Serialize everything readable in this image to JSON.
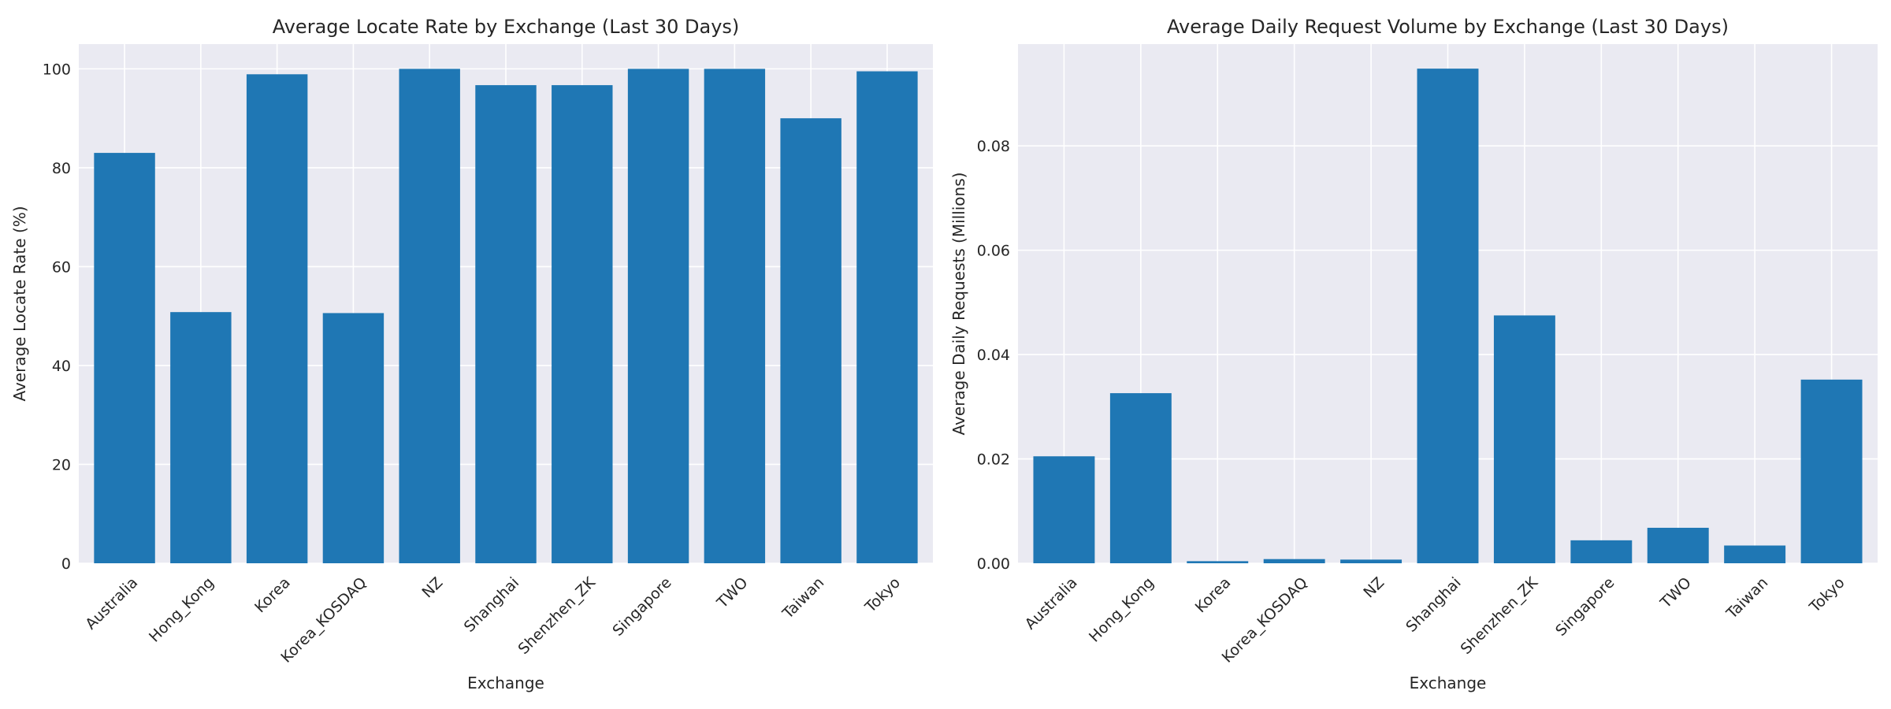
{
  "chart_data": [
    {
      "type": "bar",
      "title": "Average Locate Rate by Exchange (Last 30 Days)",
      "xlabel": "Exchange",
      "ylabel": "Average Locate Rate (%)",
      "categories": [
        "Australia",
        "Hong_Kong",
        "Korea",
        "Korea_KOSDAQ",
        "NZ",
        "Shanghai",
        "Shenzhen_ZK",
        "Singapore",
        "TWO",
        "Taiwan",
        "Tokyo"
      ],
      "values": [
        83.0,
        50.8,
        98.9,
        50.6,
        100.0,
        96.7,
        96.7,
        100.0,
        100.0,
        90.0,
        99.5
      ],
      "ylim": [
        0,
        105
      ],
      "yticks": [
        0,
        20,
        40,
        60,
        80,
        100
      ],
      "ytick_labels": [
        "0",
        "20",
        "40",
        "60",
        "80",
        "100"
      ],
      "grid": true,
      "color": "#1f77b4"
    },
    {
      "type": "bar",
      "title": "Average Daily Request Volume by Exchange (Last 30 Days)",
      "xlabel": "Exchange",
      "ylabel": "Average Daily Requests (Millions)",
      "categories": [
        "Australia",
        "Hong_Kong",
        "Korea",
        "Korea_KOSDAQ",
        "NZ",
        "Shanghai",
        "Shenzhen_ZK",
        "Singapore",
        "TWO",
        "Taiwan",
        "Tokyo"
      ],
      "values": [
        0.0205,
        0.0326,
        0.0004,
        0.0008,
        0.0007,
        0.0948,
        0.0475,
        0.0044,
        0.0068,
        0.0034,
        0.0352
      ],
      "ylim": [
        0,
        0.0995
      ],
      "yticks": [
        0,
        0.02,
        0.04,
        0.06,
        0.08
      ],
      "ytick_labels": [
        "0.00",
        "0.02",
        "0.04",
        "0.06",
        "0.08"
      ],
      "grid": true,
      "color": "#1f77b4"
    }
  ]
}
